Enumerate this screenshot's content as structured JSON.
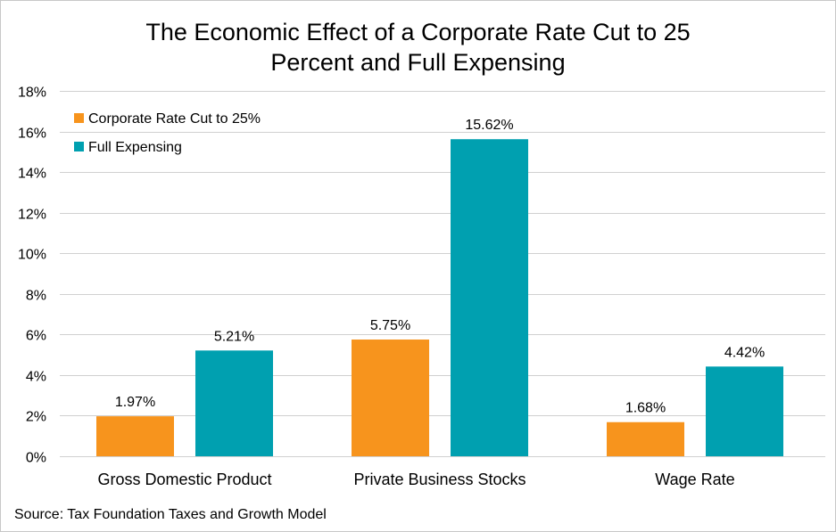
{
  "chart_data": {
    "type": "bar",
    "title_lines": [
      "The Economic Effect of a Corporate Rate Cut to 25",
      "Percent and Full Expensing"
    ],
    "title": "The Economic Effect of a Corporate Rate Cut to 25 Percent and Full Expensing",
    "categories": [
      "Gross Domestic Product",
      "Private Business Stocks",
      "Wage Rate"
    ],
    "series": [
      {
        "name": "Corporate Rate Cut to 25%",
        "color": "#F7941D",
        "values": [
          1.97,
          5.75,
          1.68
        ],
        "labels": [
          "1.97%",
          "5.75%",
          "1.68%"
        ]
      },
      {
        "name": "Full Expensing",
        "color": "#00A0B0",
        "values": [
          5.21,
          15.62,
          4.42
        ],
        "labels": [
          "5.21%",
          "15.62%",
          "4.42%"
        ]
      }
    ],
    "xlabel": "",
    "ylabel": "",
    "ylim": [
      0,
      18
    ],
    "yticks": [
      0,
      2,
      4,
      6,
      8,
      10,
      12,
      14,
      16,
      18
    ],
    "ytick_labels": [
      "0%",
      "2%",
      "4%",
      "6%",
      "8%",
      "10%",
      "12%",
      "14%",
      "16%",
      "18%"
    ],
    "grid": true,
    "legend_position": "top-left",
    "source": "Source: Tax Foundation Taxes and Growth Model"
  }
}
